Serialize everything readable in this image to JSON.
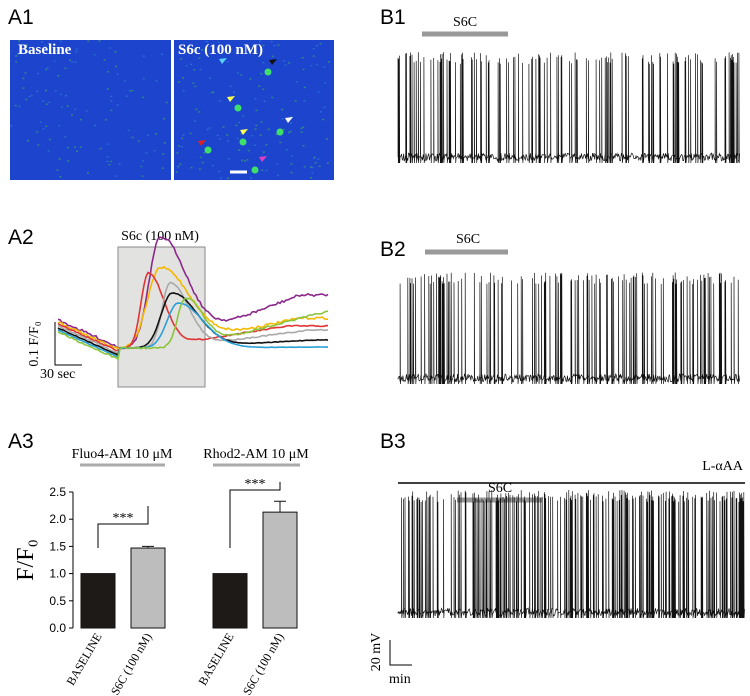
{
  "panels": {
    "a1": {
      "label": "A1",
      "left_caption": "Baseline",
      "right_caption": "S6c (100 nM)"
    },
    "a2": {
      "label": "A2",
      "stimulus": "S6c (100 nM)",
      "scale_y": "0.1 F/F₀",
      "scale_x": "30 sec"
    },
    "a3": {
      "label": "A3",
      "dye_left": "Fluo4-AM 10 μM",
      "dye_right": "Rhod2-AM 10 μM",
      "significance": [
        "***",
        "***"
      ]
    },
    "b1": {
      "label": "B1",
      "stimulus": "S6C"
    },
    "b2": {
      "label": "B2",
      "stimulus": "S6C"
    },
    "b3": {
      "label": "B3",
      "stimulus": "S6C",
      "blocker": "L-αAA",
      "scale_y": "20 mV",
      "scale_x": "min"
    }
  },
  "chart_data": {
    "type": "bar",
    "ylabel": "F/F₀",
    "categories": [
      "BASELINE",
      "S6C (100 nM)",
      "BASELINE",
      "S6C (100 nM)"
    ],
    "values": [
      1.0,
      1.47,
      1.0,
      2.13
    ],
    "errors": [
      0,
      0.03,
      0,
      0.2
    ],
    "colors": [
      "#1e1a18",
      "#bdbdbd",
      "#1e1a18",
      "#bdbdbd"
    ],
    "ylim": [
      0,
      2.5
    ],
    "yticks": [
      {
        "value": 0,
        "label": "0.0"
      },
      {
        "value": 0.5,
        "label": "0.5"
      },
      {
        "value": 1,
        "label": "1.0"
      },
      {
        "value": 1.5,
        "label": "1.5"
      },
      {
        "value": 2,
        "label": "2.0"
      },
      {
        "value": 2.5,
        "label": "2.5"
      }
    ]
  }
}
